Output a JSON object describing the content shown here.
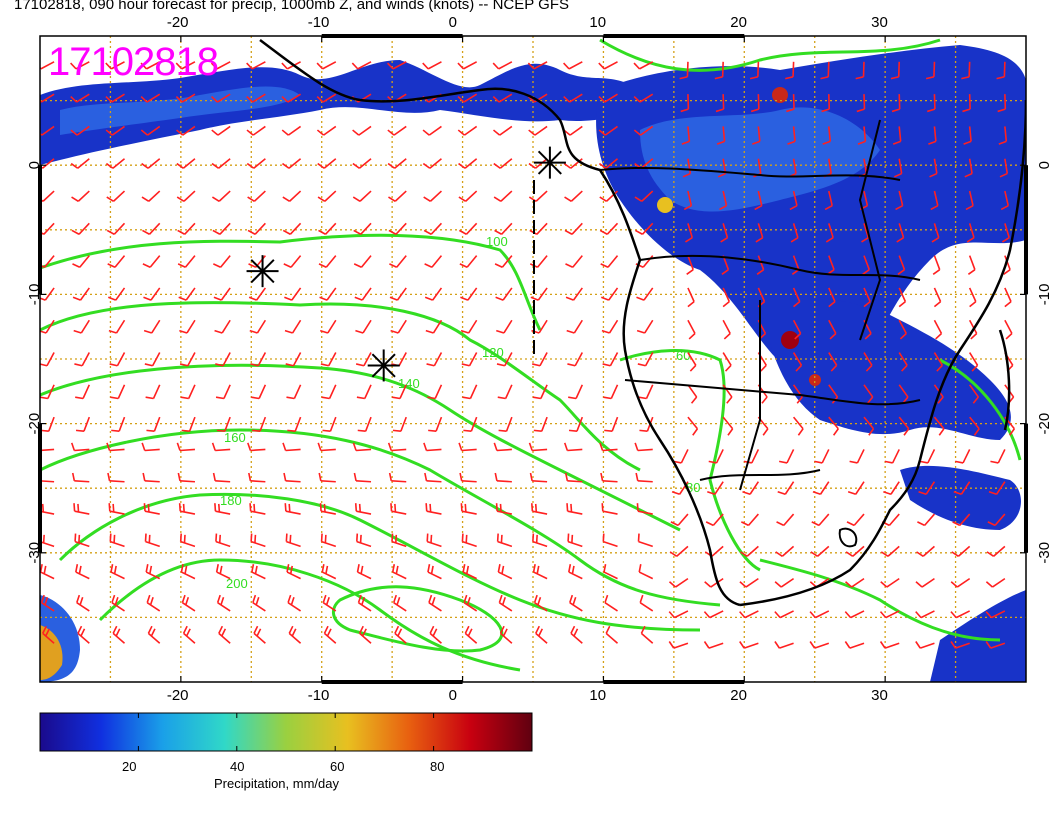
{
  "title": "17102818, 090 hour forecast for precip, 1000mb Z, and winds (knots) -- NCEP GFS",
  "stamp": "17102818",
  "map": {
    "lon_range": [
      -30,
      40
    ],
    "lat_range": [
      -40,
      10
    ],
    "x_ticks": [
      "-20",
      "-10",
      "0",
      "10",
      "20",
      "30"
    ],
    "y_ticks": [
      "0",
      "-10",
      "-20",
      "-30"
    ],
    "grid_color": "#d4a017",
    "contour_color": "#33dd22",
    "barb_color": "#ff2020",
    "coast_color": "#000000",
    "contour_labels": [
      "100",
      "120",
      "140",
      "160",
      "180",
      "200",
      "60",
      "80"
    ],
    "markers": [
      {
        "name": "high-center-1",
        "lon": -14.2,
        "lat": -8.2
      },
      {
        "name": "high-center-2",
        "lon": -5.6,
        "lat": -15.5
      },
      {
        "name": "low-center",
        "lon": 6.2,
        "lat": 0.2
      }
    ]
  },
  "colorbar": {
    "ticks": [
      "20",
      "40",
      "60",
      "80"
    ],
    "label": "Precipitation, mm/day",
    "colors": [
      "#1a0a8c",
      "#1030e0",
      "#1aa0e8",
      "#30d8c8",
      "#9ad040",
      "#e8c020",
      "#e86010",
      "#c80010",
      "#600010"
    ]
  }
}
